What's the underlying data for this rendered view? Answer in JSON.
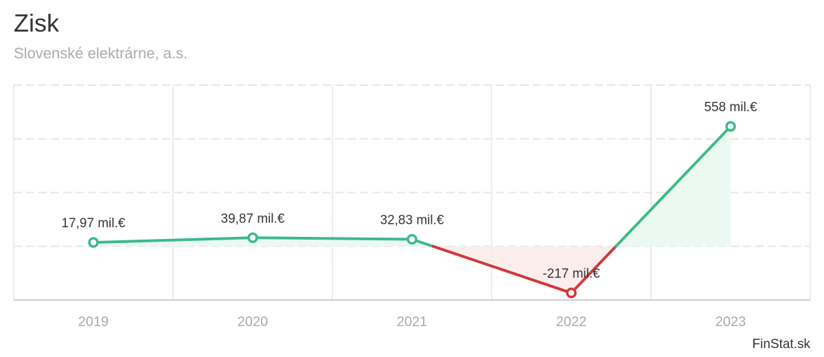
{
  "title": "Zisk",
  "subtitle": "Slovenské elektrárne, a.s.",
  "credit": "FinStat.sk",
  "colors": {
    "positive": "#3dba8a",
    "negative": "#d0393a",
    "positive_fill": "#eaf8f2",
    "negative_fill": "#fbeceb",
    "grid": "#e6e6e6",
    "axis_text": "#aaaaaa"
  },
  "chart_data": {
    "type": "line",
    "categories": [
      "2019",
      "2020",
      "2021",
      "2022",
      "2023"
    ],
    "values": [
      17.97,
      39.87,
      32.83,
      -217,
      558
    ],
    "data_labels": [
      "17,97 mil.€",
      "39,87 mil.€",
      "32,83 mil.€",
      "-217 mil.€",
      "558 mil.€"
    ],
    "unit": "mil.€",
    "ylim": [
      -250,
      750
    ],
    "grid": true,
    "legend": "none"
  }
}
